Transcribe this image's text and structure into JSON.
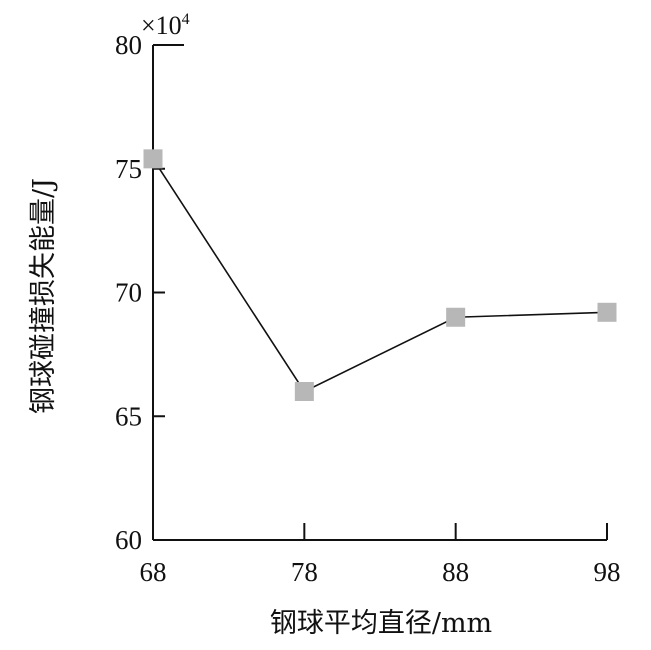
{
  "chart_data": {
    "type": "line",
    "title": "",
    "xlabel": "钢球平均直径/mm",
    "ylabel": "钢球碰撞损失能量/J",
    "y_multiplier": {
      "base": "×10",
      "exponent": "4"
    },
    "x": [
      68,
      78,
      88,
      98
    ],
    "x_tick_labels": [
      "68",
      "78",
      "88",
      "98"
    ],
    "y_ticks": [
      60,
      65,
      70,
      75,
      80
    ],
    "y_tick_labels": [
      "60",
      "65",
      "70",
      "75",
      "80"
    ],
    "xlim": [
      68,
      98
    ],
    "ylim": [
      60,
      80
    ],
    "grid": false,
    "legend": "none",
    "series": [
      {
        "values": [
          75.4,
          66.0,
          69.0,
          69.2
        ],
        "line_color": "#111111",
        "marker": "square",
        "marker_color": "#b7b7b7"
      }
    ]
  }
}
